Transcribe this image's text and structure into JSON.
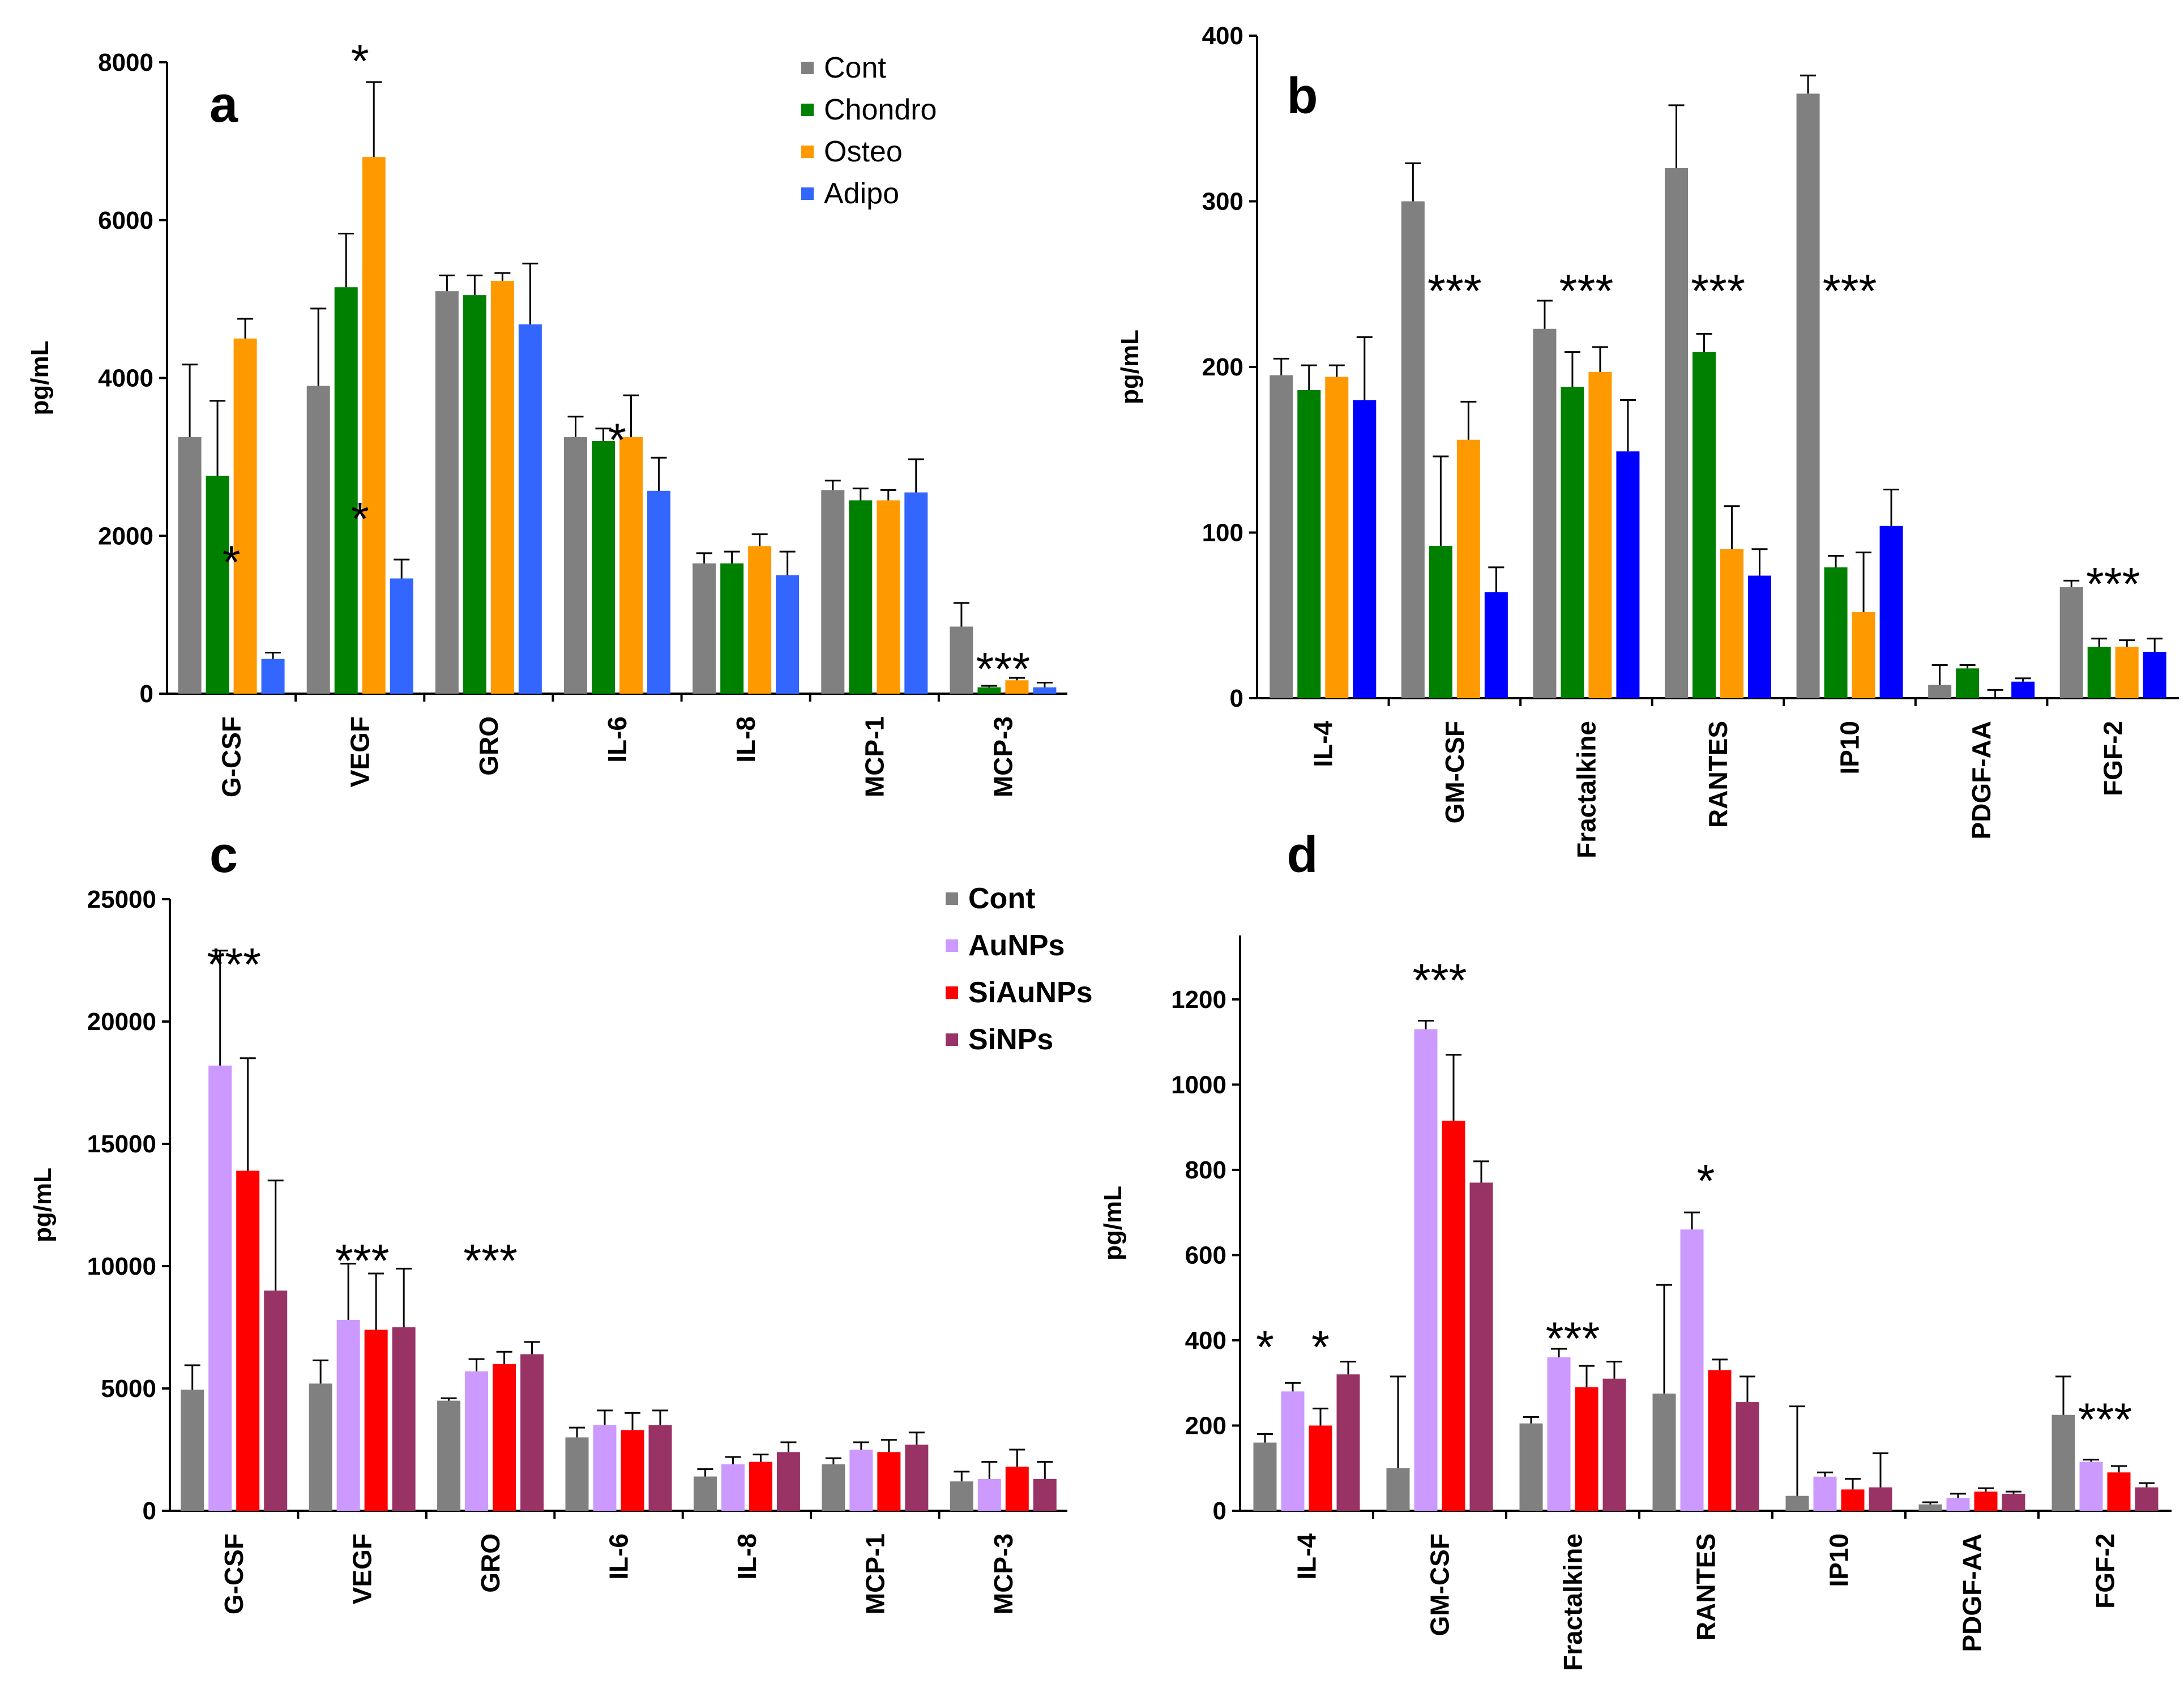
{
  "chart_data": [
    {
      "id": "a",
      "type": "bar",
      "panel_label": "a",
      "ylabel": "pg/mL",
      "ylim": [
        0,
        8000
      ],
      "yticks": [
        0,
        2000,
        4000,
        6000,
        8000
      ],
      "categories": [
        "G-CSF",
        "VEGF",
        "GRO",
        "IL-6",
        "IL-8",
        "MCP-1",
        "MCP-3"
      ],
      "series": [
        {
          "name": "Cont",
          "color": "#808080",
          "values": [
            3250,
            3900,
            5100,
            3250,
            1650,
            2580,
            850
          ],
          "errors": [
            920,
            980,
            200,
            260,
            130,
            120,
            300
          ]
        },
        {
          "name": "Chondro",
          "color": "#008000",
          "values": [
            2760,
            5150,
            5050,
            3200,
            1650,
            2450,
            80
          ],
          "errors": [
            950,
            680,
            250,
            160,
            150,
            150,
            20
          ]
        },
        {
          "name": "Osteo",
          "color": "#FF9900",
          "values": [
            4500,
            6800,
            5230,
            3250,
            1870,
            2450,
            170
          ],
          "errors": [
            250,
            950,
            100,
            530,
            150,
            130,
            30
          ]
        },
        {
          "name": "Adipo",
          "color": "#3366FF",
          "values": [
            440,
            1460,
            4680,
            2570,
            1500,
            2550,
            80
          ],
          "errors": [
            80,
            240,
            770,
            420,
            300,
            420,
            60
          ]
        }
      ],
      "annotations": [
        {
          "text": "*",
          "category": "G-CSF",
          "value": 1750
        },
        {
          "text": "*",
          "category": "VEGF",
          "value": 8100
        },
        {
          "text": "*",
          "category": "VEGF",
          "value": 2300
        },
        {
          "text": "*",
          "category": "IL-6",
          "value": 3300
        },
        {
          "text": "***",
          "category": "MCP-3",
          "value": 400
        }
      ],
      "legend": {
        "position": "top-right"
      }
    },
    {
      "id": "b",
      "type": "bar",
      "panel_label": "b",
      "ylabel": "pg/mL",
      "ylim": [
        0,
        400
      ],
      "yticks": [
        0,
        100,
        200,
        300,
        400
      ],
      "categories": [
        "IL-4",
        "GM-CSF",
        "Fractalkine",
        "RANTES",
        "IP10",
        "PDGF-AA",
        "FGF-2"
      ],
      "series": [
        {
          "name": "Cont",
          "color": "#808080",
          "values": [
            195,
            300,
            223,
            320,
            365,
            8,
            67
          ],
          "errors": [
            10,
            23,
            17,
            38,
            11,
            12,
            4
          ]
        },
        {
          "name": "Chondro",
          "color": "#008000",
          "values": [
            186,
            92,
            188,
            209,
            79,
            18,
            31
          ],
          "errors": [
            15,
            54,
            21,
            11,
            7,
            2,
            5
          ]
        },
        {
          "name": "Osteo",
          "color": "#FF9900",
          "values": [
            194,
            156,
            197,
            90,
            52,
            0,
            31
          ],
          "errors": [
            7,
            23,
            15,
            26,
            36,
            5,
            4
          ]
        },
        {
          "name": "Adipo",
          "color": "#0000FF",
          "values": [
            180,
            64,
            149,
            74,
            104,
            10,
            28
          ],
          "errors": [
            38,
            15,
            31,
            16,
            22,
            2,
            8
          ]
        }
      ],
      "annotations": [
        {
          "text": "***",
          "category": "GM-CSF",
          "value": 250
        },
        {
          "text": "***",
          "category": "Fractalkine",
          "value": 250
        },
        {
          "text": "***",
          "category": "RANTES",
          "value": 250
        },
        {
          "text": "***",
          "category": "IP10",
          "value": 250
        },
        {
          "text": "***",
          "category": "FGF-2",
          "value": 73
        }
      ]
    },
    {
      "id": "c",
      "type": "bar",
      "panel_label": "c",
      "ylabel": "pg/mL",
      "ylim": [
        0,
        25000
      ],
      "yticks": [
        0,
        5000,
        10000,
        15000,
        20000,
        25000
      ],
      "categories": [
        "G-CSF",
        "VEGF",
        "GRO",
        "IL-6",
        "IL-8",
        "MCP-1",
        "MCP-3"
      ],
      "series": [
        {
          "name": "Cont",
          "color": "#808080",
          "values": [
            4950,
            5200,
            4500,
            3000,
            1400,
            1900,
            1200
          ],
          "errors": [
            1000,
            950,
            100,
            400,
            300,
            250,
            400
          ]
        },
        {
          "name": "AuNPs",
          "color": "#CC99FF",
          "values": [
            18200,
            7800,
            5700,
            3500,
            1900,
            2500,
            1300
          ],
          "errors": [
            4700,
            2300,
            500,
            600,
            300,
            300,
            700
          ]
        },
        {
          "name": "SiAuNPs",
          "color": "#FF0000",
          "values": [
            13900,
            7400,
            6000,
            3300,
            2000,
            2400,
            1800
          ],
          "errors": [
            4600,
            2300,
            500,
            700,
            300,
            500,
            700
          ]
        },
        {
          "name": "SiNPs",
          "color": "#993366",
          "values": [
            9000,
            7500,
            6400,
            3500,
            2400,
            2700,
            1300
          ],
          "errors": [
            4500,
            2400,
            500,
            600,
            400,
            500,
            700
          ]
        }
      ],
      "annotations": [
        {
          "text": "***",
          "category": "G-CSF",
          "value": 22600
        },
        {
          "text": "***",
          "category": "VEGF",
          "value": 10500
        },
        {
          "text": "***",
          "category": "GRO",
          "value": 10500
        }
      ],
      "legend": {
        "position": "top-right"
      }
    },
    {
      "id": "d",
      "type": "bar",
      "panel_label": "d",
      "ylabel": "pg/mL",
      "ylim": [
        0,
        1350
      ],
      "yticks": [
        0,
        200,
        400,
        600,
        800,
        1000,
        1200
      ],
      "categories": [
        "IL-4",
        "GM-CSF",
        "Fractalkine",
        "RANTES",
        "IP10",
        "PDGF-AA",
        "FGF-2"
      ],
      "series": [
        {
          "name": "Cont",
          "color": "#808080",
          "values": [
            160,
            100,
            205,
            275,
            35,
            15,
            225
          ],
          "errors": [
            20,
            215,
            15,
            255,
            210,
            5,
            90
          ]
        },
        {
          "name": "AuNPs",
          "color": "#CC99FF",
          "values": [
            280,
            1130,
            360,
            660,
            80,
            30,
            115
          ],
          "errors": [
            20,
            20,
            20,
            40,
            10,
            10,
            5
          ]
        },
        {
          "name": "SiAuNPs",
          "color": "#FF0000",
          "values": [
            200,
            915,
            290,
            330,
            50,
            45,
            90
          ],
          "errors": [
            40,
            155,
            50,
            25,
            25,
            8,
            15
          ]
        },
        {
          "name": "SiNPs",
          "color": "#993366",
          "values": [
            320,
            770,
            310,
            255,
            55,
            40,
            55
          ],
          "errors": [
            30,
            50,
            40,
            60,
            80,
            5,
            10
          ]
        }
      ],
      "annotations": [
        {
          "text": "*",
          "category": "IL-4",
          "value": 400,
          "series": "Cont"
        },
        {
          "text": "*",
          "category": "IL-4",
          "value": 400,
          "series": "SiAuNPs"
        },
        {
          "text": "***",
          "category": "GM-CSF",
          "value": 1260
        },
        {
          "text": "*",
          "category": "RANTES",
          "value": 790
        },
        {
          "text": "***",
          "category": "Fractalkine",
          "value": 420
        },
        {
          "text": "***",
          "category": "FGF-2",
          "value": 230
        }
      ]
    }
  ]
}
